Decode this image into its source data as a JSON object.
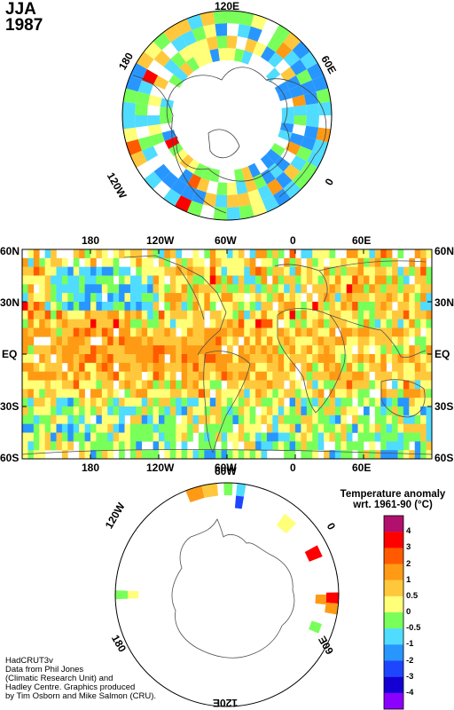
{
  "title": {
    "season": "JJA",
    "year": "1987"
  },
  "north_polar": {
    "labels": {
      "top": "120E",
      "upper_left": "180",
      "upper_right": "60E",
      "lower_left": "120W",
      "right": "0"
    }
  },
  "main_map": {
    "top_lon": [
      "180",
      "120W",
      "60W",
      "0",
      "60E"
    ],
    "bottom_lon": [
      "180",
      "120W",
      "60W",
      "0",
      "60E"
    ],
    "left_lat": [
      "60N",
      "30N",
      "EQ",
      "30S",
      "60S"
    ],
    "right_lat": [
      "60N",
      "30N",
      "EQ",
      "30S",
      "60S"
    ]
  },
  "south_polar": {
    "labels": {
      "upper_left": "120W",
      "upper_top": "60W",
      "right": "0",
      "left": "180",
      "lower_right": "60E",
      "bottom": "120E"
    }
  },
  "legend": {
    "title_line1": "Temperature anomaly",
    "title_line2": "wrt. 1961-90  (°C)",
    "levels": [
      "4",
      "3",
      "2",
      "1",
      "0.5",
      "0",
      "-0.5",
      "-1",
      "-2",
      "-3",
      "-4"
    ],
    "colors": [
      "#b0106e",
      "#ff0000",
      "#ff5a00",
      "#ff9a14",
      "#ffc83c",
      "#ffff78",
      "#78ff5a",
      "#50dcff",
      "#2896ff",
      "#1e46ff",
      "#1400d2",
      "#8c00ff"
    ]
  },
  "credit": {
    "line1": "HadCRUT3v",
    "line2": "Data from Phil Jones",
    "line3": "(Climatic Research Unit) and",
    "line4": "Hadley Centre.  Graphics produced",
    "line5": "by Tim Osborn and Mike Salmon (CRU)."
  }
}
